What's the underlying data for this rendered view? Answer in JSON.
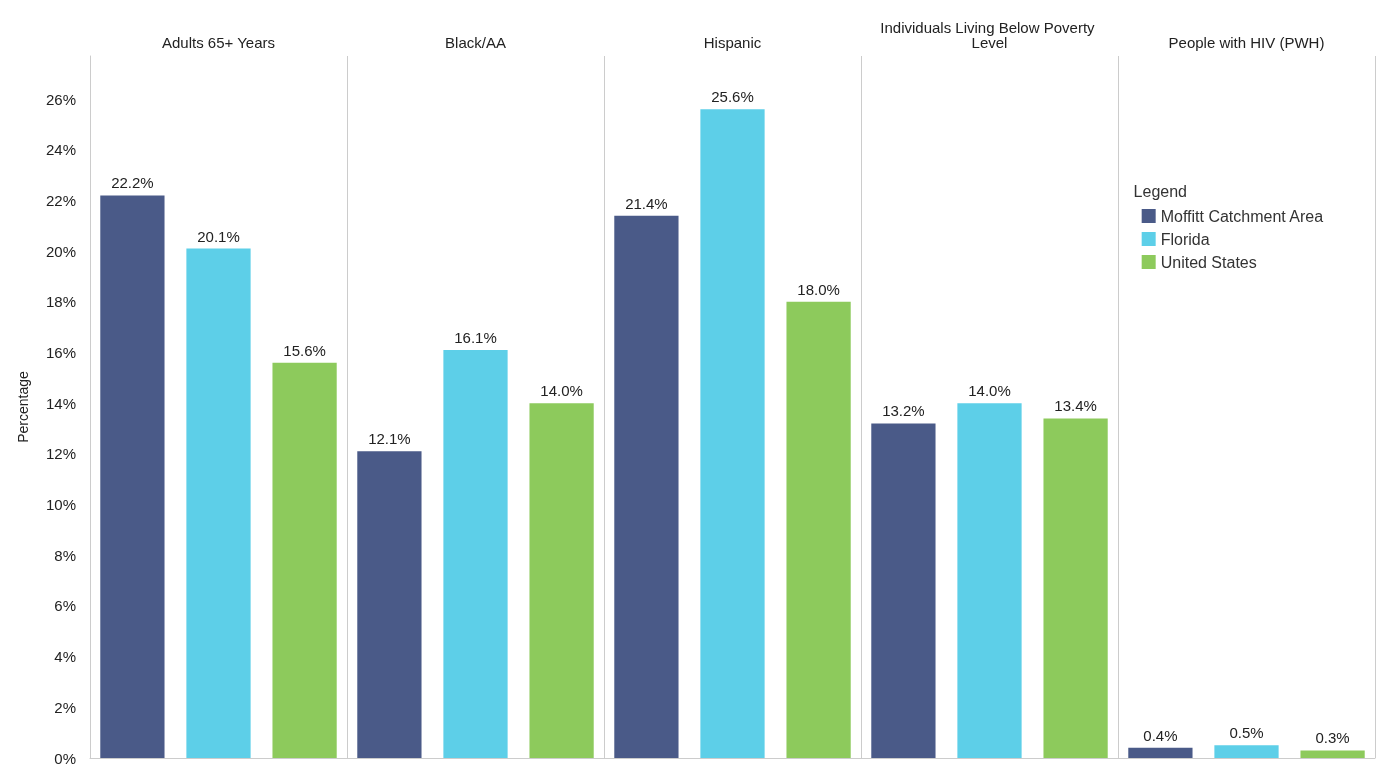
{
  "chart_data": {
    "type": "bar",
    "ylabel": "Percentage",
    "legend_title": "Legend",
    "legend": "top right",
    "grid": "x",
    "categories": [
      "Adults 65+ Years",
      "Black/AA",
      "Hispanic",
      "Individuals Living Below Poverty Level",
      "People with HIV (PWH)"
    ],
    "series": [
      {
        "name": "Moffitt Catchment Area",
        "color": "#4a5a88",
        "values": [
          22.2,
          12.1,
          21.4,
          13.2,
          0.4
        ],
        "value_labels": [
          "22.2%",
          "12.1%",
          "21.4%",
          "13.2%",
          "0.4%"
        ]
      },
      {
        "name": "Florida",
        "color": "#5dcfe8",
        "values": [
          20.1,
          16.1,
          25.6,
          14.0,
          0.5
        ],
        "value_labels": [
          "20.1%",
          "16.1%",
          "25.6%",
          "14.0%",
          "0.5%"
        ]
      },
      {
        "name": "United States",
        "color": "#8dca5c",
        "values": [
          15.6,
          14.0,
          18.0,
          13.4,
          0.3
        ],
        "value_labels": [
          "15.6%",
          "14.0%",
          "18.0%",
          "13.4%",
          "0.3%"
        ]
      }
    ],
    "ylim": [
      0,
      27.7
    ],
    "yticks": [
      {
        "value": 0,
        "label": "0%"
      },
      {
        "value": 2,
        "label": "2%"
      },
      {
        "value": 4,
        "label": "4%"
      },
      {
        "value": 6,
        "label": "6%"
      },
      {
        "value": 8,
        "label": "8%"
      },
      {
        "value": 10,
        "label": "10%"
      },
      {
        "value": 12,
        "label": "12%"
      },
      {
        "value": 14,
        "label": "14%"
      },
      {
        "value": 16,
        "label": "16%"
      },
      {
        "value": 18,
        "label": "18%"
      },
      {
        "value": 20,
        "label": "20%"
      },
      {
        "value": 22,
        "label": "22%"
      },
      {
        "value": 24,
        "label": "24%"
      },
      {
        "value": 26,
        "label": "26%"
      }
    ]
  }
}
